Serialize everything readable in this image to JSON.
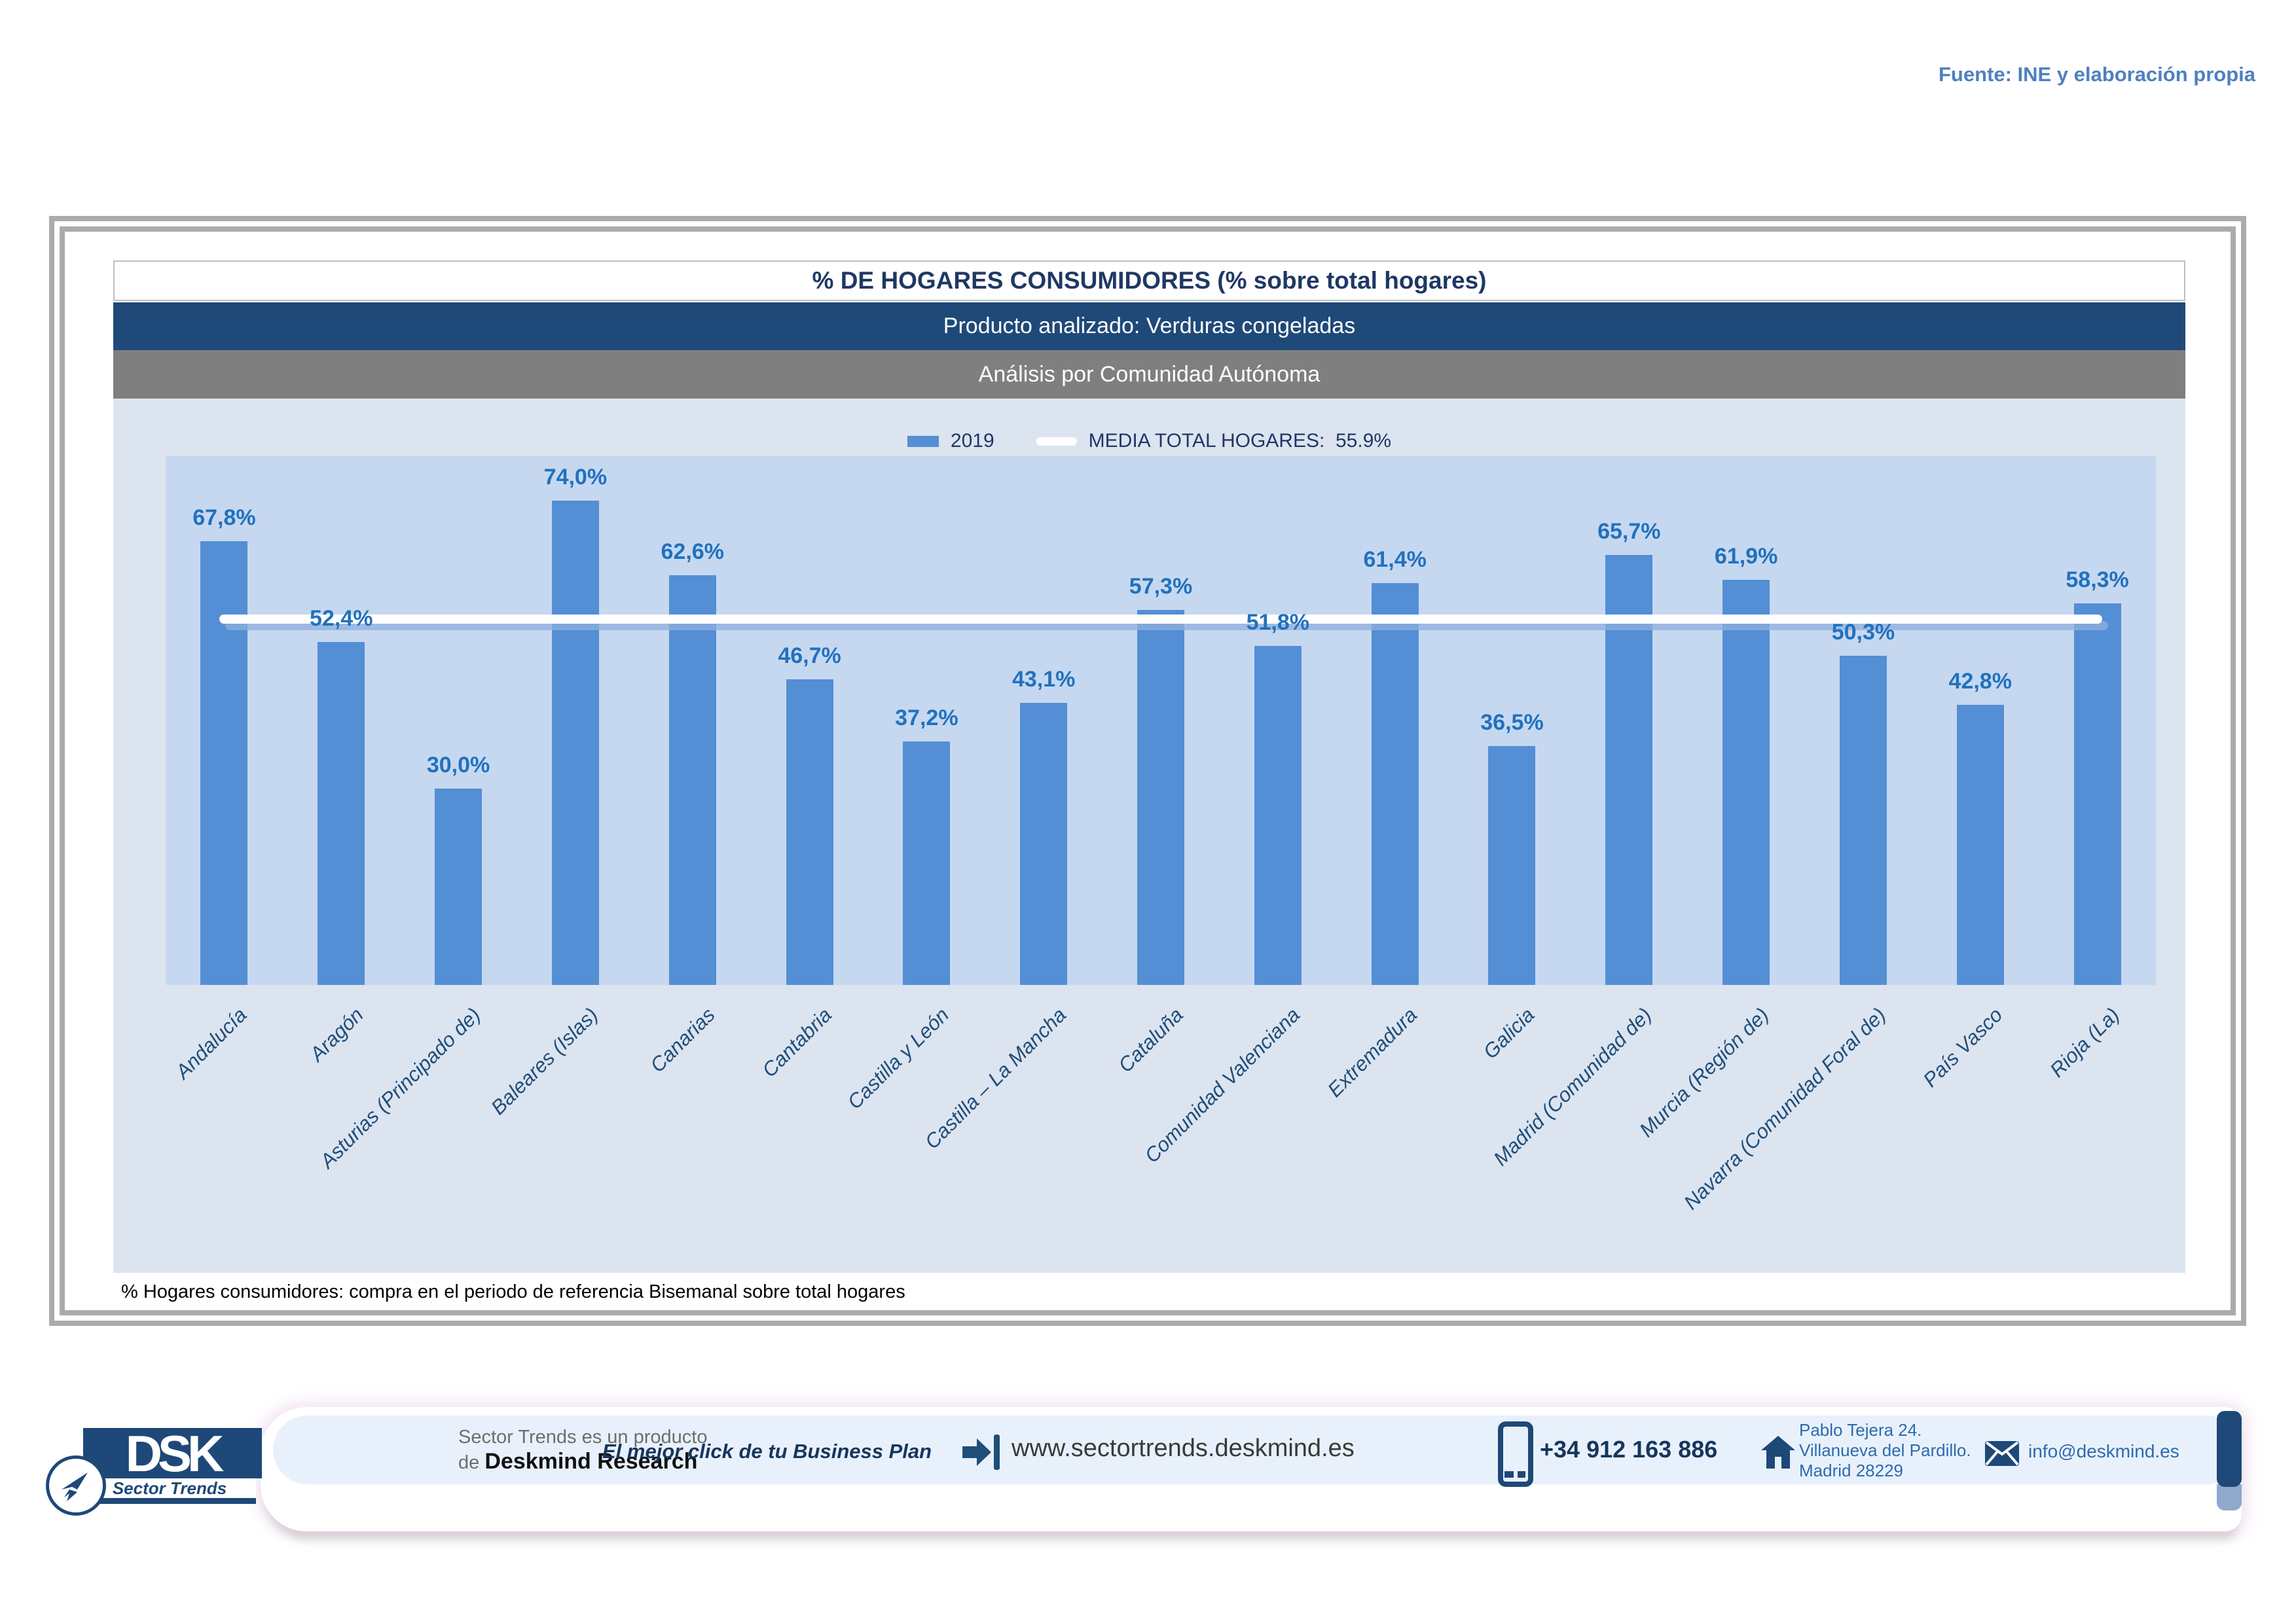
{
  "source_note": "Fuente: INE y elaboración propia",
  "panel": {
    "title": "% DE HOGARES CONSUMIDORES (% sobre total hogares)",
    "subtitle_product": "Producto analizado: Verduras congeladas",
    "subtitle_analysis": "Análisis por Comunidad Autónoma",
    "footnote": "% Hogares consumidores: compra en el periodo de referencia Bisemanal sobre total hogares"
  },
  "chart_data": {
    "type": "bar",
    "title": "% DE HOGARES CONSUMIDORES (% sobre total hogares)",
    "series_label": "2019",
    "media_label": "MEDIA TOTAL  HOGARES:",
    "media_value": "55.9%",
    "media_total": 55.9,
    "ylim": [
      0,
      80.8
    ],
    "grid": false,
    "legend_position": "top-center",
    "bar_color": "#548ed4",
    "plot_bg": "#c6d8f0",
    "chart_bg": "#dce4f0",
    "categories": [
      "Andalucía",
      "Aragón",
      "Asturias (Principado de)",
      "Baleares (Islas)",
      "Canarias",
      "Cantabria",
      "Castilla y León",
      "Castilla – La Mancha",
      "Cataluña",
      "Comunidad Valenciana",
      "Extremadura",
      "Galicia",
      "Madrid (Comunidad de)",
      "Murcia (Región de)",
      "Navarra (Comunidad Foral de)",
      "País Vasco",
      "Rioja (La)"
    ],
    "values": [
      67.8,
      52.4,
      30.0,
      74.0,
      62.6,
      46.7,
      37.2,
      43.1,
      57.3,
      51.8,
      61.4,
      36.5,
      65.7,
      61.9,
      50.3,
      42.8,
      58.3
    ],
    "value_labels": [
      "67,8%",
      "52,4%",
      "30,0%",
      "74,0%",
      "62,6%",
      "46,7%",
      "37,2%",
      "43,1%",
      "57,3%",
      "51,8%",
      "61,4%",
      "36,5%",
      "65,7%",
      "61,9%",
      "50,3%",
      "42,8%",
      "58,3%"
    ]
  },
  "footer": {
    "logo": {
      "dsk": "DSK",
      "sector_trends": "Sector Trends"
    },
    "product_line1": "Sector Trends es un producto",
    "product_line2_prefix": "de ",
    "product_line2_bold": "Deskmind Research",
    "tagline": "El mejor click de tu Business Plan",
    "website": "www.sectortrends.deskmind.es",
    "phone": "+34 912 163 886",
    "address_line1": "Pablo Tejera 24.",
    "address_line2": "Villanueva del Pardillo.",
    "address_line3": "Madrid 28229",
    "email": "info@deskmind.es"
  }
}
